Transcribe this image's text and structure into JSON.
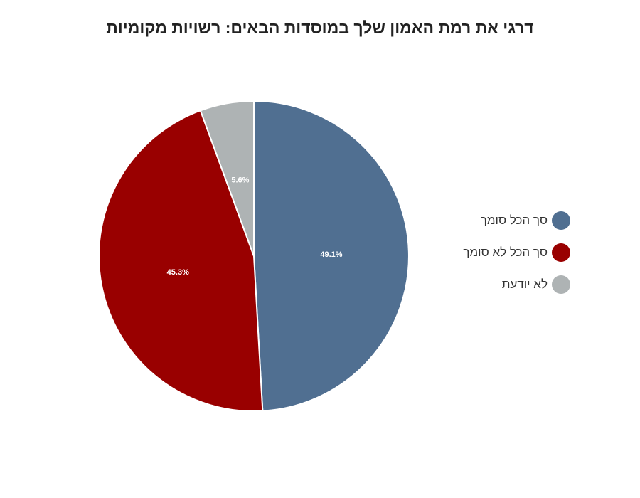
{
  "chart_data": {
    "type": "pie",
    "title": "דרגי את רמת האמון שלך במוסדות הבאים: רשויות מקומיות",
    "categories": [
      "סך הכל סומך",
      "סך הכל לא סומך",
      "לא יודעת"
    ],
    "values": [
      49.1,
      45.3,
      5.6
    ],
    "value_labels": [
      "49.1%",
      "45.3%",
      "5.6%"
    ],
    "colors": [
      "#506f91",
      "#990000",
      "#aeb3b4"
    ],
    "legend_position": "right"
  }
}
